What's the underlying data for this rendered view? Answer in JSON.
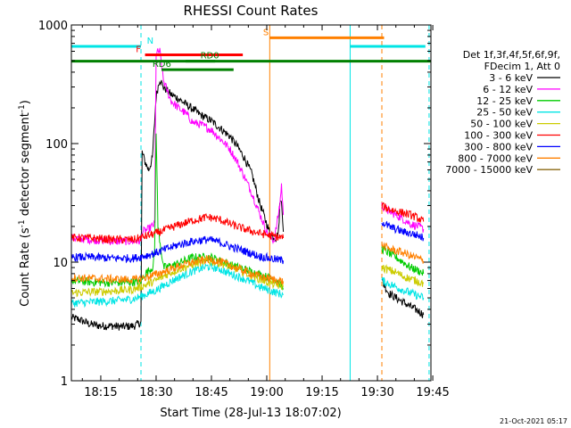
{
  "chart_data": {
    "type": "line",
    "title": "RHESSI Count Rates",
    "xlabel": "Start Time (28-Jul-13 18:07:02)",
    "ylabel_main": "Count Rate (s",
    "ylabel_sup": "-1",
    "ylabel_end": " detector segment",
    "ylabel_sup2": "-1",
    "ylabel_close": ")",
    "x_scale": "time",
    "x_unit": "minutes since 18:00 UT",
    "xlim": [
      7.03,
      104.5
    ],
    "xticks": [
      {
        "label": "18:15",
        "t": 15
      },
      {
        "label": "18:30",
        "t": 30
      },
      {
        "label": "18:45",
        "t": 45
      },
      {
        "label": "19:00",
        "t": 60
      },
      {
        "label": "19:15",
        "t": 75
      },
      {
        "label": "19:30",
        "t": 90
      },
      {
        "label": "19:45",
        "t": 105
      }
    ],
    "y_scale": "log",
    "ylim": [
      1,
      1000
    ],
    "yticks": [
      {
        "label": "1",
        "v": 1
      },
      {
        "label": "10",
        "v": 10
      },
      {
        "label": "100",
        "v": 100
      },
      {
        "label": "1000",
        "v": 1000
      }
    ],
    "legend": {
      "position": "right",
      "header": [
        "Det 1f,3f,4f,5f,6f,9f,",
        "FDecim 1, Att 0"
      ],
      "entries": [
        {
          "label": "3 - 6 keV",
          "color": "#000000"
        },
        {
          "label": "6 - 12 keV",
          "color": "#ff00ff"
        },
        {
          "label": "12 - 25 keV",
          "color": "#00cc00"
        },
        {
          "label": "25 - 50 keV",
          "color": "#00e5e5"
        },
        {
          "label": "50 - 100 keV",
          "color": "#cccc00"
        },
        {
          "label": "100 - 300 keV",
          "color": "#ff0000"
        },
        {
          "label": "300 - 800 keV",
          "color": "#0000ff"
        },
        {
          "label": "800 - 7000 keV",
          "color": "#ff8000"
        },
        {
          "label": "7000 - 15000 keV",
          "color": "#8b6914"
        }
      ]
    },
    "series": [
      {
        "name": "3 - 6 keV",
        "color": "#000000",
        "segments": [
          [
            [
              7.03,
              3.4
            ],
            [
              9,
              3.3
            ],
            [
              12,
              3.0
            ],
            [
              15,
              2.9
            ],
            [
              18,
              2.9
            ],
            [
              21,
              2.85
            ],
            [
              24,
              2.9
            ],
            [
              25.9,
              3.1
            ],
            [
              26.2,
              85
            ],
            [
              27,
              70
            ],
            [
              28,
              60
            ],
            [
              29,
              75
            ],
            [
              30,
              250
            ],
            [
              31,
              350
            ],
            [
              32,
              300
            ],
            [
              34,
              260
            ],
            [
              36,
              240
            ],
            [
              38,
              215
            ],
            [
              40,
              195
            ],
            [
              42,
              175
            ],
            [
              45,
              155
            ],
            [
              48,
              130
            ],
            [
              50,
              115
            ],
            [
              52,
              95
            ],
            [
              54,
              75
            ],
            [
              56,
              55
            ],
            [
              58,
              32
            ],
            [
              60,
              21
            ],
            [
              61,
              17
            ],
            [
              62.5,
              16
            ],
            [
              63.2,
              18
            ],
            [
              63.5,
              30
            ],
            [
              64,
              35
            ],
            [
              64.5,
              18
            ]
          ],
          [
            [
              91.2,
              7
            ],
            [
              93,
              5.5
            ],
            [
              95,
              5
            ],
            [
              97,
              4.6
            ],
            [
              99,
              4.2
            ],
            [
              101,
              3.9
            ],
            [
              102.5,
              3.6
            ]
          ]
        ]
      },
      {
        "name": "6 - 12 keV",
        "color": "#ff00ff",
        "segments": [
          [
            [
              7.03,
              16
            ],
            [
              12,
              15.5
            ],
            [
              18,
              15
            ],
            [
              25.9,
              15
            ],
            [
              26.2,
              18
            ],
            [
              28,
              19
            ],
            [
              29.6,
              21
            ],
            [
              30,
              580
            ],
            [
              31,
              600
            ],
            [
              32,
              340
            ],
            [
              34,
              230
            ],
            [
              36,
              200
            ],
            [
              38,
              180
            ],
            [
              40,
              150
            ],
            [
              42,
              145
            ],
            [
              45,
              130
            ],
            [
              48,
              105
            ],
            [
              50,
              90
            ],
            [
              52,
              70
            ],
            [
              54,
              52
            ],
            [
              56,
              38
            ],
            [
              58,
              26
            ],
            [
              60,
              18
            ],
            [
              62,
              15
            ],
            [
              63.5,
              30
            ],
            [
              64,
              45
            ],
            [
              64.5,
              25
            ]
          ],
          [
            [
              91.2,
              30
            ],
            [
              93,
              27
            ],
            [
              95,
              25
            ],
            [
              97,
              23
            ],
            [
              99,
              21
            ],
            [
              101,
              20
            ],
            [
              102.5,
              19
            ]
          ]
        ]
      },
      {
        "name": "12 - 25 keV",
        "color": "#00cc00",
        "segments": [
          [
            [
              7.03,
              7
            ],
            [
              12,
              6.8
            ],
            [
              18,
              6.7
            ],
            [
              24,
              6.8
            ],
            [
              25.9,
              6.8
            ],
            [
              27,
              8
            ],
            [
              29,
              9
            ],
            [
              29.6,
              12
            ],
            [
              30,
              130
            ],
            [
              30.5,
              20
            ],
            [
              32,
              9
            ],
            [
              35,
              9.5
            ],
            [
              40,
              11
            ],
            [
              45,
              11
            ],
            [
              50,
              9.5
            ],
            [
              55,
              8.5
            ],
            [
              60,
              7.5
            ],
            [
              63,
              7
            ],
            [
              64.5,
              6
            ]
          ],
          [
            [
              91.2,
              13
            ],
            [
              93,
              12
            ],
            [
              95,
              11
            ],
            [
              97,
              10
            ],
            [
              99,
              9
            ],
            [
              101,
              8.5
            ],
            [
              102.5,
              8
            ]
          ]
        ]
      },
      {
        "name": "25 - 50 keV",
        "color": "#00e5e5",
        "segments": [
          [
            [
              7.03,
              4.5
            ],
            [
              12,
              4.6
            ],
            [
              18,
              4.7
            ],
            [
              24,
              4.9
            ],
            [
              27,
              5.3
            ],
            [
              30,
              5.8
            ],
            [
              33,
              6.6
            ],
            [
              36,
              7.4
            ],
            [
              40,
              8.4
            ],
            [
              44,
              9.2
            ],
            [
              47,
              8.8
            ],
            [
              50,
              8
            ],
            [
              54,
              7.2
            ],
            [
              58,
              6.2
            ],
            [
              62,
              5.6
            ],
            [
              64.5,
              5.3
            ]
          ],
          [
            [
              91.2,
              7
            ],
            [
              93,
              6.6
            ],
            [
              95,
              6.2
            ],
            [
              97,
              5.8
            ],
            [
              99,
              5.5
            ],
            [
              101,
              5.2
            ],
            [
              102.5,
              5
            ]
          ]
        ]
      },
      {
        "name": "50 - 100 keV",
        "color": "#cccc00",
        "segments": [
          [
            [
              7.03,
              5.5
            ],
            [
              12,
              5.6
            ],
            [
              18,
              5.7
            ],
            [
              24,
              5.9
            ],
            [
              27,
              6.4
            ],
            [
              30,
              7
            ],
            [
              33,
              7.9
            ],
            [
              36,
              8.7
            ],
            [
              40,
              9.6
            ],
            [
              44,
              10.3
            ],
            [
              47,
              9.9
            ],
            [
              50,
              9.2
            ],
            [
              54,
              8.2
            ],
            [
              58,
              7.2
            ],
            [
              62,
              6.5
            ],
            [
              64.5,
              6.2
            ]
          ],
          [
            [
              91.2,
              9
            ],
            [
              93,
              8.6
            ],
            [
              95,
              8.2
            ],
            [
              97,
              7.6
            ],
            [
              99,
              7.2
            ],
            [
              101,
              6.9
            ],
            [
              102.5,
              6.6
            ]
          ]
        ]
      },
      {
        "name": "100 - 300 keV",
        "color": "#ff0000",
        "segments": [
          [
            [
              7.03,
              16
            ],
            [
              12,
              16
            ],
            [
              18,
              15.5
            ],
            [
              24,
              15.5
            ],
            [
              27,
              16.5
            ],
            [
              30,
              17.5
            ],
            [
              33,
              19
            ],
            [
              36,
              20.5
            ],
            [
              40,
              22.5
            ],
            [
              44,
              24
            ],
            [
              47,
              23
            ],
            [
              50,
              21
            ],
            [
              54,
              19
            ],
            [
              58,
              17.5
            ],
            [
              62,
              16.5
            ],
            [
              64.5,
              16
            ]
          ],
          [
            [
              91.2,
              30
            ],
            [
              93,
              28
            ],
            [
              95,
              27
            ],
            [
              97,
              26
            ],
            [
              99,
              25
            ],
            [
              101,
              23.5
            ],
            [
              102.5,
              22
            ]
          ]
        ]
      },
      {
        "name": "300 - 800 keV",
        "color": "#0000ff",
        "segments": [
          [
            [
              7.03,
              11
            ],
            [
              12,
              11
            ],
            [
              18,
              10.8
            ],
            [
              24,
              10.8
            ],
            [
              27,
              11.3
            ],
            [
              30,
              12
            ],
            [
              33,
              13
            ],
            [
              36,
              14
            ],
            [
              40,
              15
            ],
            [
              44,
              15.5
            ],
            [
              47,
              14.8
            ],
            [
              50,
              13.6
            ],
            [
              54,
              12.4
            ],
            [
              58,
              11.2
            ],
            [
              62,
              10.6
            ],
            [
              64.5,
              10.3
            ]
          ],
          [
            [
              91.2,
              22
            ],
            [
              93,
              20
            ],
            [
              95,
              19
            ],
            [
              97,
              18
            ],
            [
              99,
              17.5
            ],
            [
              101,
              16.8
            ],
            [
              102.5,
              16
            ]
          ]
        ]
      },
      {
        "name": "800 - 7000 keV",
        "color": "#ff8000",
        "segments": [
          [
            [
              7.03,
              7.4
            ],
            [
              12,
              7.3
            ],
            [
              18,
              7.2
            ],
            [
              24,
              7.1
            ],
            [
              27,
              7.4
            ],
            [
              30,
              7.9
            ],
            [
              33,
              8.5
            ],
            [
              36,
              9.2
            ],
            [
              40,
              10
            ],
            [
              44,
              10.6
            ],
            [
              47,
              10.2
            ],
            [
              50,
              9.4
            ],
            [
              54,
              8.4
            ],
            [
              58,
              7.6
            ],
            [
              62,
              7.1
            ],
            [
              64.5,
              6.9
            ]
          ],
          [
            [
              91.2,
              14
            ],
            [
              93,
              13
            ],
            [
              95,
              12.5
            ],
            [
              97,
              12
            ],
            [
              99,
              11.3
            ],
            [
              101,
              10.8
            ],
            [
              102.5,
              10.2
            ]
          ]
        ]
      }
    ],
    "flag_bars": [
      {
        "label": "N",
        "color": "#00e5e5",
        "y": 660,
        "x0": 7.03,
        "x1": 25.9,
        "label_x": 27.5
      },
      {
        "label": "F",
        "color": "#ff0000",
        "y": 560,
        "x0": 27.0,
        "x1": 53.5,
        "label_x": 24.5
      },
      {
        "label": "RD0",
        "color": "#008000",
        "y": 495,
        "x0": 7.03,
        "x1": 104.5,
        "label_x": 42.0
      },
      {
        "label": "RD6",
        "color": "#008000",
        "y": 420,
        "x0": 31.5,
        "x1": 51.0,
        "label_x": 29.0
      },
      {
        "label": "",
        "color": "#008000",
        "y": 495,
        "x0": 38.0,
        "x1": 46.0,
        "label_x": null
      },
      {
        "label": "S",
        "color": "#ff8000",
        "y": 780,
        "x0": 60.8,
        "x1": 91.8,
        "label_x": 59.0
      },
      {
        "label": "",
        "color": "#00e5e5",
        "y": 660,
        "x0": 82.6,
        "x1": 103.0,
        "label_x": null
      }
    ],
    "vertical_lines": [
      {
        "t": 7.03,
        "color": "#00e5e5",
        "dashed": false
      },
      {
        "t": 25.9,
        "color": "#00e5e5",
        "dashed": true
      },
      {
        "t": 60.8,
        "color": "#ff8000",
        "dashed": false
      },
      {
        "t": 82.6,
        "color": "#00e5e5",
        "dashed": false
      },
      {
        "t": 91.2,
        "color": "#ff8000",
        "dashed": true
      },
      {
        "t": 104.0,
        "color": "#00e5e5",
        "dashed": true
      }
    ],
    "footer_timestamp": "21-Oct-2021 05:17"
  }
}
